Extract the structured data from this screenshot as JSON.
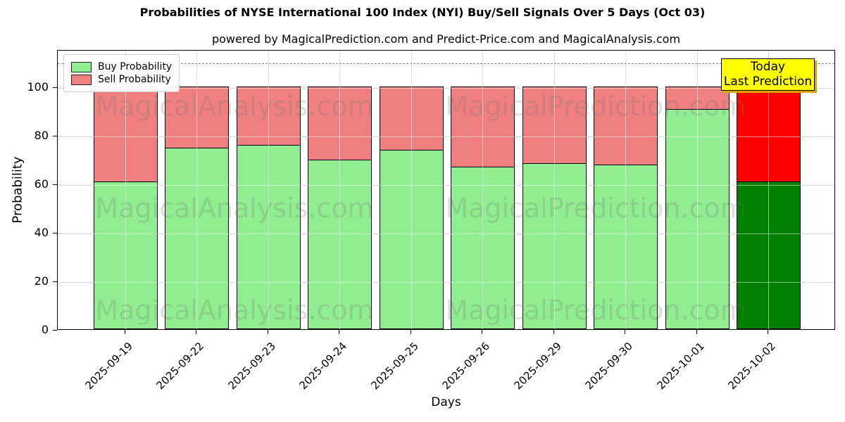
{
  "chart_data": {
    "type": "bar",
    "stacked": true,
    "title": "Probabilities of NYSE International 100 Index (NYI) Buy/Sell Signals Over 5 Days (Oct 03)",
    "subtitle": "powered by MagicalPrediction.com and Predict-Price.com and MagicalAnalysis.com",
    "xlabel": "Days",
    "ylabel": "Probability",
    "categories": [
      "2025-09-19",
      "2025-09-22",
      "2025-09-23",
      "2025-09-24",
      "2025-09-25",
      "2025-09-26",
      "2025-09-29",
      "2025-09-30",
      "2025-10-01",
      "2025-10-02"
    ],
    "series": [
      {
        "name": "Buy Probability",
        "color": "#90ee90",
        "values": [
          61,
          75,
          76,
          70,
          74,
          67,
          68.5,
          68,
          91,
          61
        ]
      },
      {
        "name": "Sell Probability",
        "color": "#f08080",
        "values": [
          39,
          25,
          24,
          30,
          26,
          33,
          31.5,
          32,
          9,
          38
        ]
      }
    ],
    "last_bar_highlight": {
      "buy_color": "#008000",
      "sell_color": "#ff0000"
    },
    "ylim": [
      0,
      115.4
    ],
    "yticks": [
      0,
      20,
      40,
      60,
      80,
      100
    ],
    "dashed_line_y": 110,
    "grid": true,
    "legend": {
      "position": "upper left"
    },
    "annotation": {
      "line1": "Today",
      "line2": "Last Prediction",
      "bg_color": "#ffff00"
    },
    "watermark_left": "MagicalAnalysis.com",
    "watermark_right": "MagicalPrediction.com",
    "grid_color": "#b0b0b0",
    "axis_color": "#000000"
  }
}
